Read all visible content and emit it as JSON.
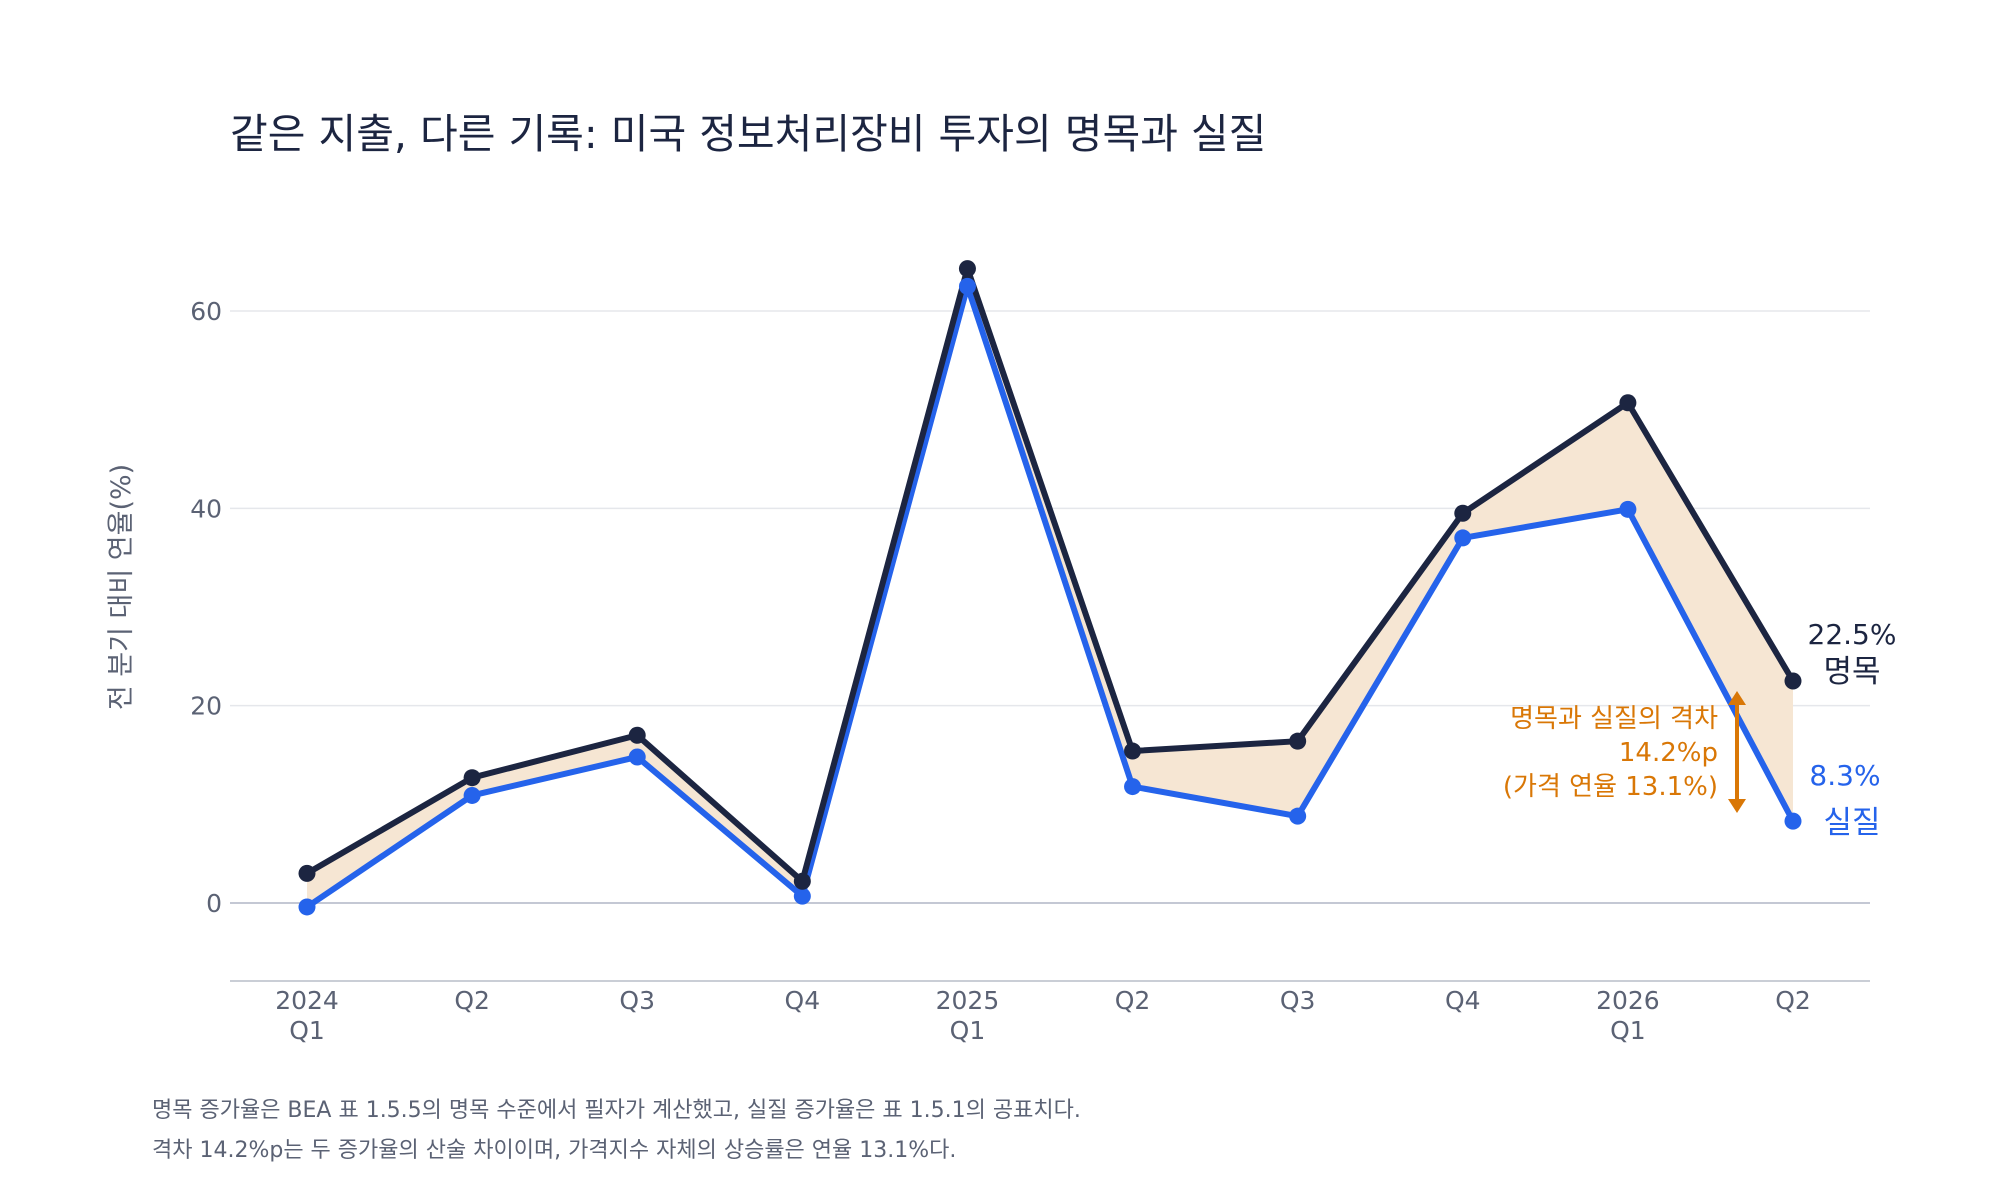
{
  "chart_data": {
    "type": "line",
    "title": "같은 지출, 다른 기록: 미국 정보처리장비 투자의 명목과 실질",
    "ylabel": "전 분기 대비 연율(%)",
    "xlabel": "",
    "ylim": [
      -8,
      68
    ],
    "yticks": [
      0,
      20,
      40,
      60
    ],
    "grid": true,
    "categories": [
      [
        "2024",
        "Q1"
      ],
      [
        "Q2"
      ],
      [
        "Q3"
      ],
      [
        "Q4"
      ],
      [
        "2025",
        "Q1"
      ],
      [
        "Q2"
      ],
      [
        "Q3"
      ],
      [
        "Q4"
      ],
      [
        "2026",
        "Q1"
      ],
      [
        "Q2"
      ]
    ],
    "series": [
      {
        "name": "명목",
        "color": "#1c2541",
        "values": [
          3.0,
          12.7,
          17.0,
          2.2,
          64.3,
          15.4,
          16.4,
          39.5,
          50.7,
          22.5
        ],
        "end_label": "22.5%"
      },
      {
        "name": "실질",
        "color": "#2563eb",
        "values": [
          -0.4,
          10.9,
          14.8,
          0.7,
          62.5,
          11.8,
          8.8,
          37.0,
          39.9,
          8.3
        ],
        "end_label": "8.3%"
      }
    ],
    "fill_between": {
      "color": "#f6e6d3"
    },
    "annotation": {
      "color": "#d97706",
      "lines": [
        "명목과 실질의 격차",
        "14.2%p",
        "(가격 연율 13.1%)"
      ]
    }
  },
  "notes": [
    "명목 증가율은 BEA 표 1.5.5의 명목 수준에서 필자가 계산했고, 실질 증가율은 표 1.5.1의 공표치다.",
    "격차 14.2%p는 두 증가율의 산술 차이이며, 가격지수 자체의 상승률은 연율 13.1%다."
  ]
}
